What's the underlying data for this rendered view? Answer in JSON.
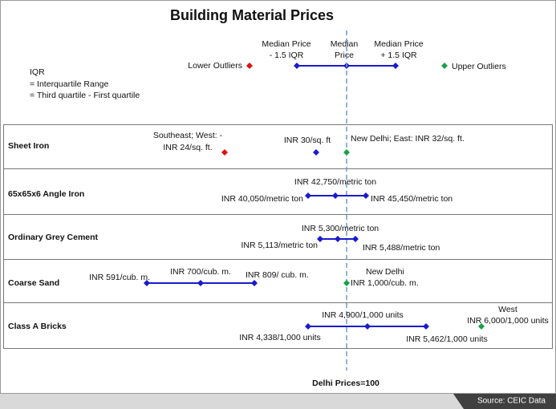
{
  "title": "Building Material Prices",
  "legend": {
    "lower_outliers": "Lower Outliers",
    "upper_outliers": "Upper Outliers",
    "low_whisker": [
      "Median Price",
      "- 1.5 IQR"
    ],
    "median": [
      "Median",
      "Price"
    ],
    "high_whisker": [
      "Median Price",
      "+ 1.5 IQR"
    ]
  },
  "iqr_note": [
    "IQR",
    "= Interquartile Range",
    "= Third quartile - First quartile"
  ],
  "rows": [
    {
      "name": "Sheet Iron",
      "labels": [
        [
          "Southeast; West: -",
          "INR 24/sq. ft."
        ],
        [
          "INR 30/sq. ft"
        ],
        [
          "New Delhi; East: INR 32/sq. ft."
        ]
      ]
    },
    {
      "name": "65x65x6 Angle Iron",
      "labels": [
        [
          "INR 40,050/metric ton"
        ],
        [
          "INR 42,750/metric ton"
        ],
        [
          "INR 45,450/metric ton"
        ]
      ]
    },
    {
      "name": "Ordinary Grey Cement",
      "labels": [
        [
          "INR 5,113/metric ton"
        ],
        [
          "INR 5,300/metric ton"
        ],
        [
          "INR 5,488/metric ton"
        ]
      ]
    },
    {
      "name": "Coarse Sand",
      "labels": [
        [
          "INR 591/cub. m."
        ],
        [
          "INR 700/cub. m."
        ],
        [
          "INR 809/ cub. m."
        ],
        [
          "New Delhi",
          "INR 1,000/cub. m."
        ]
      ]
    },
    {
      "name": "Class A Bricks",
      "labels": [
        [
          "INR 4,338/1,000 units"
        ],
        [
          "INR 4,900/1,000 units"
        ],
        [
          "INR 5,462/1,000 units"
        ],
        [
          "West",
          "INR 6,000/1,000 units"
        ]
      ]
    }
  ],
  "baseline": "Delhi Prices=100",
  "source": "Source: CEIC Data"
}
